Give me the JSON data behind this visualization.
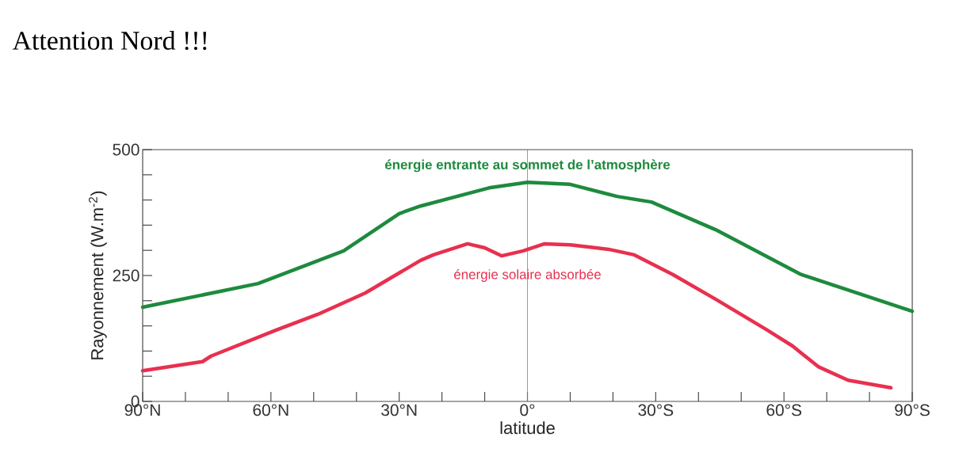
{
  "chart_data": {
    "type": "line",
    "xlabel": "latitude",
    "ylabel": "Rayonnement (W.m$^{-2}$)",
    "annotations": [
      "Attention Nord !!!"
    ],
    "xlim": [
      90,
      -90
    ],
    "ylim": [
      0,
      500
    ],
    "xticks": [
      {
        "value": 90,
        "label": "90°N"
      },
      {
        "value": 80,
        "label": null
      },
      {
        "value": 70,
        "label": null
      },
      {
        "value": 60,
        "label": "60°N"
      },
      {
        "value": 50,
        "label": null
      },
      {
        "value": 40,
        "label": null
      },
      {
        "value": 30,
        "label": "30°N"
      },
      {
        "value": 20,
        "label": null
      },
      {
        "value": 10,
        "label": null
      },
      {
        "value": 0,
        "label": "0°"
      },
      {
        "value": -10,
        "label": null
      },
      {
        "value": -20,
        "label": null
      },
      {
        "value": -30,
        "label": "30°S"
      },
      {
        "value": -40,
        "label": null
      },
      {
        "value": -50,
        "label": null
      },
      {
        "value": -60,
        "label": "60°S"
      },
      {
        "value": -70,
        "label": null
      },
      {
        "value": -80,
        "label": null
      },
      {
        "value": -90,
        "label": "90°S"
      }
    ],
    "yticks": [
      0,
      {
        "value": 50,
        "label": null
      },
      {
        "value": 100,
        "label": null
      },
      {
        "value": 150,
        "label": null
      },
      {
        "value": 200,
        "label": null
      },
      250,
      {
        "value": 300,
        "label": null
      },
      {
        "value": 350,
        "label": null
      },
      {
        "value": 400,
        "label": null
      },
      {
        "value": 450,
        "label": null
      },
      500
    ],
    "ref_lines": [
      {
        "axis": "x",
        "value": 0,
        "color": "#808080"
      }
    ],
    "series": [
      {
        "name": "énergie entrante au sommet de l’atmosphère",
        "color": "#1e8a3e",
        "x": [
          90,
          63,
          43,
          30,
          25,
          9,
          0,
          -10,
          -21,
          -29,
          -44,
          -64,
          -90
        ],
        "values": [
          187,
          234,
          299,
          373,
          388,
          424,
          435,
          431,
          407,
          396,
          341,
          252,
          179
        ]
      },
      {
        "name": "énergie solaire absorbée",
        "color": "#e8304f",
        "x": [
          90,
          76,
          74,
          59,
          49,
          38,
          30,
          25,
          22,
          14,
          10,
          6,
          1,
          -4,
          -10,
          -16,
          -19,
          -25,
          -34,
          -44,
          -56,
          -62,
          -68,
          -75,
          -85
        ],
        "values": [
          61,
          79,
          90,
          141,
          173,
          215,
          255,
          280,
          291,
          313,
          305,
          289,
          299,
          313,
          311,
          305,
          302,
          291,
          252,
          203,
          142,
          110,
          69,
          42,
          27
        ]
      }
    ]
  }
}
